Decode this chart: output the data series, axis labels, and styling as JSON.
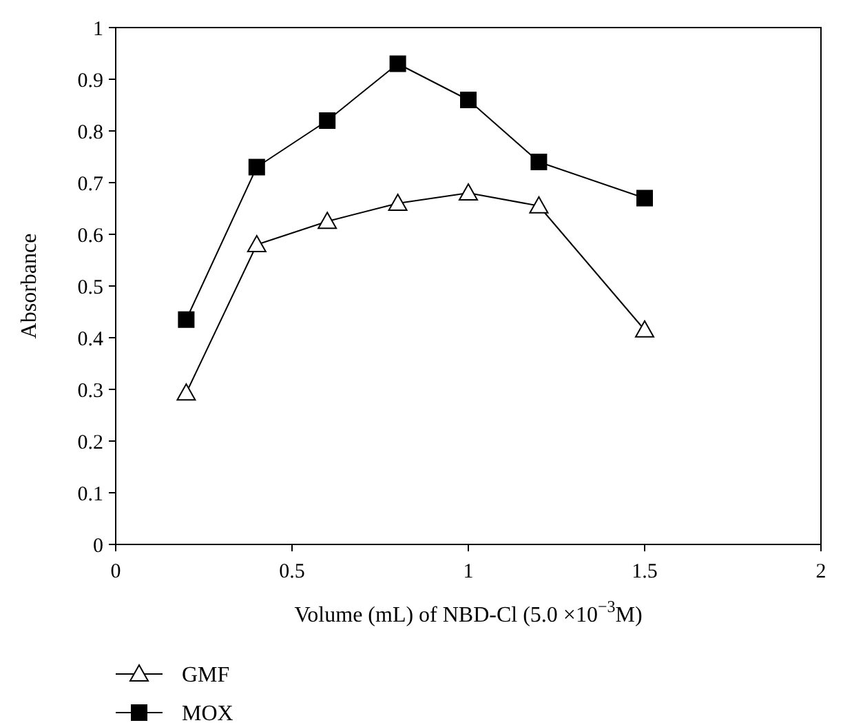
{
  "chart_data": {
    "type": "line",
    "xlabel": "Volume (mL) of NBD-Cl (5.0 ×10$^{−3}$M)",
    "ylabel": "Absorbance",
    "x": [
      0.2,
      0.4,
      0.6,
      0.8,
      1,
      1.2,
      1.5
    ],
    "series": [
      {
        "name": "GMF",
        "color": "#000000",
        "marker": "triangle",
        "values": [
          0.293,
          0.58,
          0.625,
          0.66,
          0.68,
          0.655,
          0.415
        ]
      },
      {
        "name": "MOX",
        "color": "#000000",
        "marker": "square",
        "values": [
          0.435,
          0.73,
          0.82,
          0.93,
          0.86,
          0.74,
          0.67
        ]
      }
    ],
    "xlim": [
      0,
      2
    ],
    "xticks": [
      0,
      0.5,
      1,
      1.5,
      2
    ],
    "ylim": [
      0,
      1
    ],
    "yticks": [
      0,
      0.1,
      0.2,
      0.3,
      0.4,
      0.5,
      0.6,
      0.7,
      0.8,
      0.9,
      1
    ],
    "grid": false,
    "legend": "bottom left",
    "line_style": "solid"
  }
}
